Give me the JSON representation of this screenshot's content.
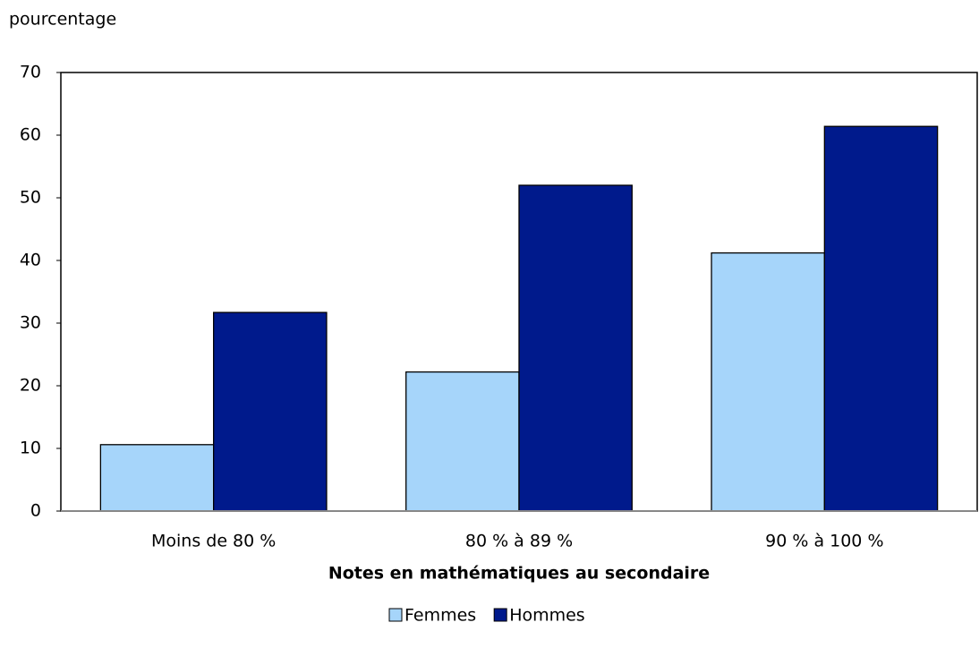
{
  "chart_data": {
    "type": "bar",
    "y_axis_label": "pourcentage",
    "x_axis_label": "Notes en mathématiques au secondaire",
    "categories": [
      "Moins de 80 %",
      "80 % à 89 %",
      "90 % à 100 %"
    ],
    "series": [
      {
        "name": "Femmes",
        "color": "#a6d5fa",
        "values": [
          10.6,
          22.2,
          41.2
        ]
      },
      {
        "name": "Hommes",
        "color": "#001a8c",
        "values": [
          31.7,
          52.0,
          61.4
        ]
      }
    ],
    "ylim": [
      0,
      70
    ],
    "yticks": [
      0,
      10,
      20,
      30,
      40,
      50,
      60,
      70
    ],
    "legend": "bottom"
  }
}
